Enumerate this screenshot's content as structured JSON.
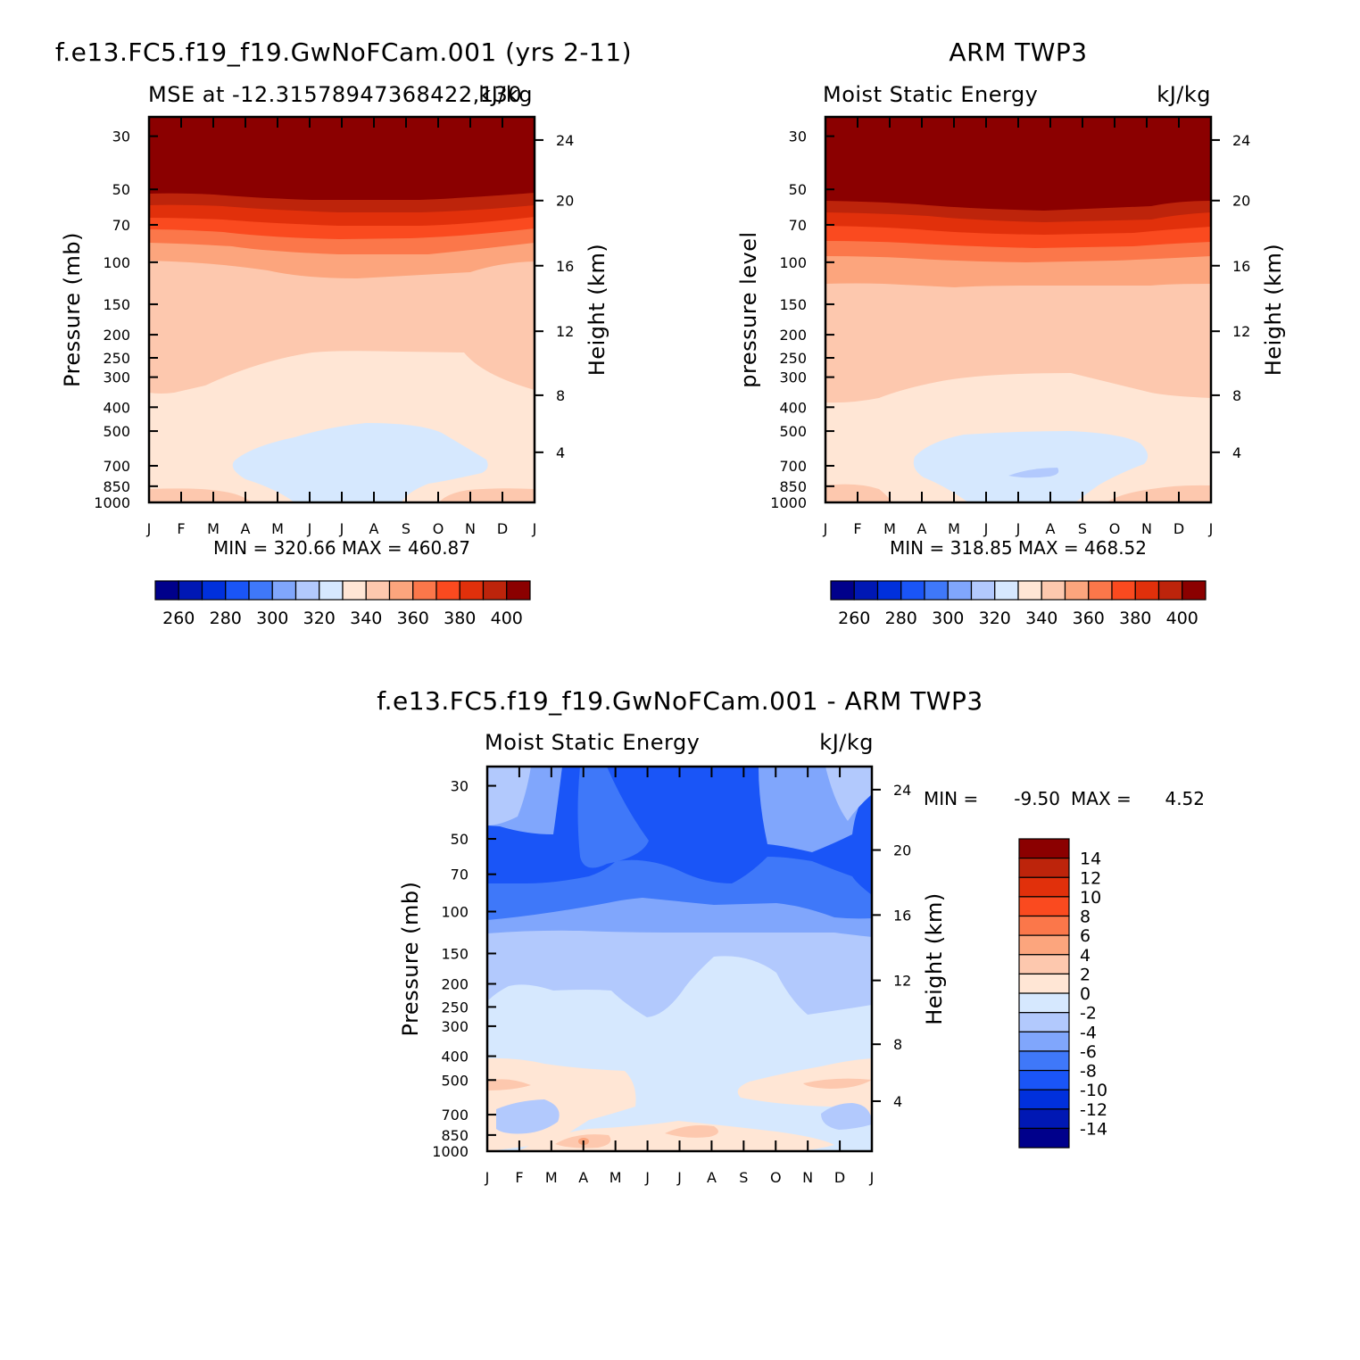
{
  "chart_data": [
    {
      "type": "contour",
      "title": "f.e13.FC5.f19_f19.GwNoFCam.001 (yrs 2-11)",
      "subtitle_left": "MSE at -12.31578947368422,130",
      "subtitle_right": "kJ/kg",
      "ylabel": "Pressure (mb)",
      "ylabel_right": "Height (km)",
      "months": [
        "J",
        "F",
        "M",
        "A",
        "M",
        "J",
        "J",
        "A",
        "S",
        "O",
        "N",
        "D",
        "J"
      ],
      "pressure_ticks": [
        "30",
        "50",
        "70",
        "100",
        "150",
        "200",
        "250",
        "300",
        "400",
        "500",
        "700",
        "850",
        "1000"
      ],
      "height_ticks": [
        "24",
        "20",
        "16",
        "12",
        "8",
        "4"
      ],
      "stats": "MIN =  320.66  MAX =  460.87",
      "colorbar_labels": [
        "260",
        "280",
        "300",
        "320",
        "340",
        "360",
        "380",
        "400"
      ],
      "contour_levels": [
        250,
        260,
        270,
        280,
        290,
        300,
        310,
        320,
        330,
        340,
        350,
        360,
        370,
        380,
        390,
        400
      ],
      "colors": [
        "#00008b",
        "#0018b4",
        "#0030dc",
        "#1a55f7",
        "#3f78f9",
        "#80a6fc",
        "#b2c9fd",
        "#d6e8fe",
        "#ffe6d5",
        "#fdc8ae",
        "#fca57d",
        "#fb774a",
        "#fa4a1f",
        "#e1300b",
        "#bd240b",
        "#8b0000"
      ]
    },
    {
      "type": "contour",
      "title": "ARM TWP3",
      "subtitle_left": "Moist Static Energy",
      "subtitle_right": "kJ/kg",
      "ylabel": "pressure level",
      "ylabel_right": "Height (km)",
      "months": [
        "J",
        "F",
        "M",
        "A",
        "M",
        "J",
        "J",
        "A",
        "S",
        "O",
        "N",
        "D",
        "J"
      ],
      "pressure_ticks": [
        "30",
        "50",
        "70",
        "100",
        "150",
        "200",
        "250",
        "300",
        "400",
        "500",
        "700",
        "850",
        "1000"
      ],
      "height_ticks": [
        "24",
        "20",
        "16",
        "12",
        "8",
        "4"
      ],
      "stats": "MIN =  318.85  MAX =  468.52",
      "colorbar_labels": [
        "260",
        "280",
        "300",
        "320",
        "340",
        "360",
        "380",
        "400"
      ]
    },
    {
      "type": "contour",
      "title": "f.e13.FC5.f19_f19.GwNoFCam.001 - ARM TWP3",
      "subtitle_left": "Moist Static Energy",
      "subtitle_right": "kJ/kg",
      "ylabel": "Pressure (mb)",
      "ylabel_right": "Height (km)",
      "months": [
        "J",
        "F",
        "M",
        "A",
        "M",
        "J",
        "J",
        "A",
        "S",
        "O",
        "N",
        "D",
        "J"
      ],
      "pressure_ticks": [
        "30",
        "50",
        "70",
        "100",
        "150",
        "200",
        "250",
        "300",
        "400",
        "500",
        "700",
        "850",
        "1000"
      ],
      "height_ticks": [
        "24",
        "20",
        "16",
        "12",
        "8",
        "4"
      ],
      "stats_min_label": "MIN =",
      "stats_min": "-9.50",
      "stats_max_label": "MAX =",
      "stats_max": "4.52",
      "colorbar_labels": [
        "14",
        "12",
        "10",
        "8",
        "6",
        "4",
        "2",
        "0",
        "-2",
        "-4",
        "-6",
        "-8",
        "-10",
        "-12",
        "-14"
      ],
      "contour_levels": [
        -14,
        -12,
        -10,
        -8,
        -6,
        -4,
        -2,
        0,
        2,
        4,
        6,
        8,
        10,
        12,
        14
      ]
    }
  ]
}
